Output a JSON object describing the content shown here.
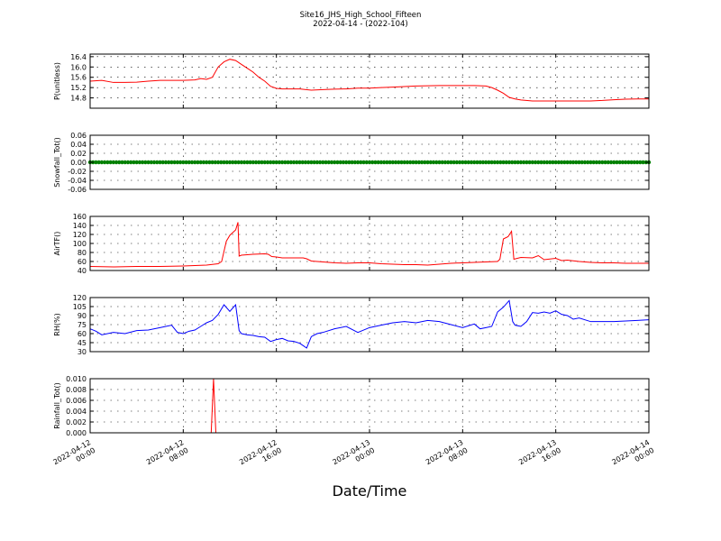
{
  "title": "Site16_JHS_High_School_Fifteen",
  "subtitle": "2022-04-14 - (2022-104)",
  "xlabel": "Date/Time",
  "x_ticks": [
    "2022-04-12\n00:00",
    "2022-04-12\n08:00",
    "2022-04-12\n16:00",
    "2022-04-13\n00:00",
    "2022-04-13\n08:00",
    "2022-04-13\n16:00",
    "2022-04-14\n00:00"
  ],
  "chart_data": [
    {
      "type": "line",
      "ylabel": "P(unitless)",
      "color": "#ff0000",
      "ylim": [
        14.4,
        16.5
      ],
      "yticks": [
        14.8,
        15.2,
        15.6,
        16.0,
        16.4
      ],
      "tick_labels": [
        "14.8",
        "15.2",
        "15.6",
        "16.0",
        "16.4"
      ],
      "x_hours": [
        0,
        1,
        2,
        3,
        4,
        5,
        6,
        7,
        8,
        9,
        9.5,
        10,
        10.5,
        11,
        11.5,
        12,
        12.5,
        13,
        13.5,
        14,
        14.5,
        15,
        15.5,
        16,
        16.5,
        17,
        18,
        19,
        20,
        21,
        22,
        23,
        24,
        25,
        26,
        27,
        28,
        29,
        30,
        31,
        32,
        33,
        34,
        34.5,
        35,
        35.5,
        36,
        36.5,
        37,
        38,
        39,
        40,
        41,
        42,
        43,
        44,
        45,
        46,
        47,
        48
      ],
      "y": [
        15.45,
        15.48,
        15.4,
        15.4,
        15.41,
        15.45,
        15.48,
        15.48,
        15.48,
        15.5,
        15.55,
        15.52,
        15.6,
        16.0,
        16.2,
        16.3,
        16.25,
        16.1,
        15.95,
        15.8,
        15.6,
        15.45,
        15.25,
        15.17,
        15.15,
        15.15,
        15.15,
        15.1,
        15.12,
        15.14,
        15.15,
        15.18,
        15.18,
        15.2,
        15.22,
        15.24,
        15.26,
        15.27,
        15.28,
        15.28,
        15.28,
        15.28,
        15.26,
        15.2,
        15.1,
        14.98,
        14.82,
        14.76,
        14.72,
        14.68,
        14.68,
        14.68,
        14.68,
        14.68,
        14.68,
        14.7,
        14.73,
        14.75,
        14.76,
        14.76
      ]
    },
    {
      "type": "scatter",
      "ylabel": "Snowfall_Tot()",
      "color": "#008000",
      "ylim": [
        -0.06,
        0.06
      ],
      "yticks": [
        -0.06,
        -0.04,
        -0.02,
        0.0,
        0.02,
        0.04,
        0.06
      ],
      "tick_labels": [
        "-0.06",
        "-0.04",
        "-0.02",
        "0.00",
        "0.02",
        "0.04",
        "0.06"
      ],
      "x_start": 0,
      "x_end": 48,
      "x_step": 0.25,
      "constant_value": 0.0
    },
    {
      "type": "line",
      "ylabel": "AirTF()",
      "color": "#ff0000",
      "ylim": [
        40,
        160
      ],
      "yticks": [
        40,
        60,
        80,
        100,
        120,
        140,
        160
      ],
      "tick_labels": [
        "40",
        "60",
        "80",
        "100",
        "120",
        "140",
        "160"
      ],
      "x_hours": [
        0,
        2,
        4,
        6,
        8,
        10,
        11,
        11.3,
        11.7,
        12,
        12.5,
        12.7,
        12.8,
        13,
        14,
        15,
        15.3,
        15.6,
        16,
        16.5,
        17,
        18,
        18.3,
        18.6,
        19,
        20,
        21,
        22,
        23,
        24,
        25,
        26,
        27,
        28,
        29,
        30,
        31,
        32,
        33,
        34,
        35,
        35.2,
        35.5,
        35.9,
        36.2,
        36.4,
        37,
        38,
        38.5,
        39,
        40,
        40.5,
        41,
        42,
        43,
        44,
        45,
        46,
        47,
        48
      ],
      "y": [
        49,
        48,
        49,
        49,
        50,
        52,
        55,
        60,
        105,
        118,
        130,
        147,
        72,
        74,
        76,
        77,
        76,
        71,
        70,
        68,
        68,
        68,
        68,
        66,
        61,
        59,
        57,
        56,
        57,
        57,
        55,
        54,
        53,
        53,
        52,
        54,
        56,
        57,
        58,
        59,
        60,
        65,
        110,
        115,
        127,
        65,
        69,
        68,
        73,
        64,
        67,
        62,
        63,
        60,
        58,
        57,
        57,
        56,
        56,
        56
      ]
    },
    {
      "type": "line",
      "ylabel": "RH(%)",
      "color": "#0000ff",
      "ylim": [
        30,
        120
      ],
      "yticks": [
        30,
        45,
        60,
        75,
        90,
        105,
        120
      ],
      "tick_labels": [
        "30",
        "45",
        "60",
        "75",
        "90",
        "105",
        "120"
      ],
      "x_hours": [
        0,
        0.5,
        1,
        2,
        3,
        4,
        5,
        6,
        7,
        7.5,
        8,
        8.5,
        9,
        9.5,
        10,
        10.5,
        11,
        11.5,
        12,
        12.5,
        12.8,
        13,
        13.5,
        14,
        14.5,
        15,
        15.5,
        16,
        16.5,
        17,
        17.5,
        18,
        18.3,
        18.6,
        19,
        19.5,
        20,
        21,
        22,
        23,
        24,
        25,
        26,
        27,
        28,
        29,
        30,
        31,
        32,
        33,
        33.5,
        34,
        34.5,
        35,
        35.5,
        36,
        36.3,
        36.5,
        37,
        37.5,
        38,
        38.5,
        39,
        39.5,
        40,
        40.5,
        41,
        41.5,
        42,
        43,
        44,
        45,
        46,
        47,
        48
      ],
      "y": [
        68,
        64,
        58,
        62,
        60,
        65,
        66,
        70,
        74,
        62,
        60,
        64,
        66,
        72,
        78,
        82,
        92,
        108,
        97,
        108,
        65,
        60,
        58,
        57,
        55,
        54,
        47,
        50,
        52,
        48,
        47,
        44,
        40,
        36,
        55,
        60,
        62,
        68,
        72,
        62,
        70,
        74,
        78,
        80,
        78,
        82,
        80,
        75,
        70,
        76,
        68,
        70,
        72,
        96,
        104,
        115,
        80,
        74,
        72,
        80,
        95,
        94,
        96,
        94,
        98,
        92,
        90,
        84,
        86,
        80,
        80,
        80,
        81,
        82,
        83
      ]
    },
    {
      "type": "line",
      "ylabel": "Rainfall_Tot()",
      "color": "#ff0000",
      "ylim": [
        0.0,
        0.01
      ],
      "yticks": [
        0.0,
        0.002,
        0.004,
        0.006,
        0.008,
        0.01
      ],
      "tick_labels": [
        "0.000",
        "0.002",
        "0.004",
        "0.006",
        "0.008",
        "0.010"
      ],
      "x_hours": [
        0,
        10.4,
        10.6,
        10.8,
        48
      ],
      "y": [
        0,
        0,
        0.01,
        0,
        0
      ]
    }
  ]
}
